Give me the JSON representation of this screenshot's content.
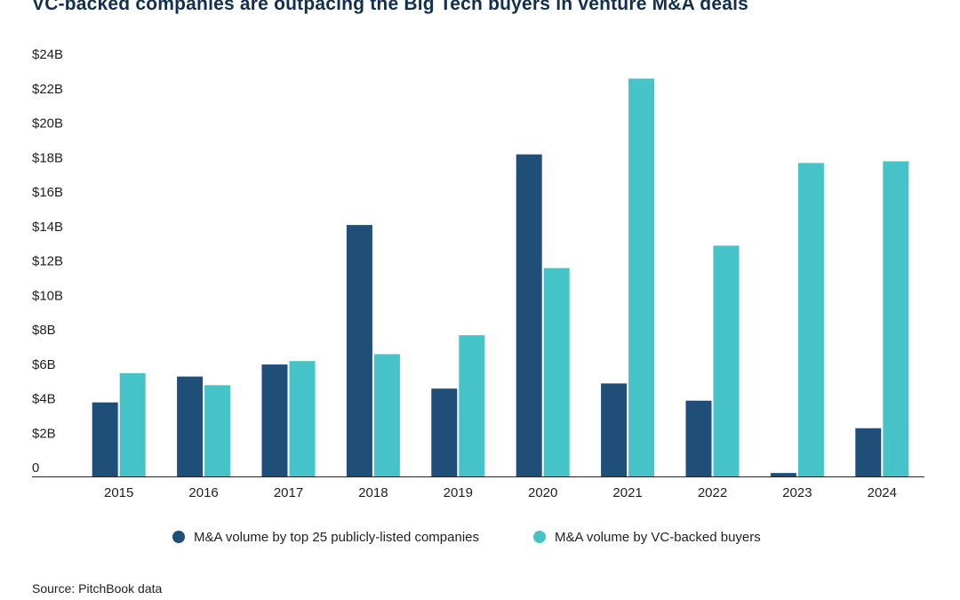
{
  "chart_data": {
    "type": "bar",
    "title": "VC-backed companies are outpacing the Big Tech buyers in venture M&A deals",
    "xlabel": "",
    "ylabel": "",
    "ylim": [
      0,
      24
    ],
    "y_ticks": [
      {
        "value": 0,
        "label": "0"
      },
      {
        "value": 2,
        "label": "$2B"
      },
      {
        "value": 4,
        "label": "$4B"
      },
      {
        "value": 6,
        "label": "$6B"
      },
      {
        "value": 8,
        "label": "$8B"
      },
      {
        "value": 10,
        "label": "$10B"
      },
      {
        "value": 12,
        "label": "$12B"
      },
      {
        "value": 14,
        "label": "$14B"
      },
      {
        "value": 16,
        "label": "$16B"
      },
      {
        "value": 18,
        "label": "$18B"
      },
      {
        "value": 20,
        "label": "$20B"
      },
      {
        "value": 22,
        "label": "$22B"
      },
      {
        "value": 24,
        "label": "$24B"
      }
    ],
    "categories": [
      "2015",
      "2016",
      "2017",
      "2018",
      "2019",
      "2020",
      "2021",
      "2022",
      "2023",
      "2024"
    ],
    "series": [
      {
        "name": "M&A volume by top 25 publicly-listed companies",
        "color": "#1f4e79",
        "values": [
          4.3,
          5.8,
          6.5,
          14.6,
          5.1,
          18.7,
          5.4,
          4.4,
          0.2,
          2.8
        ]
      },
      {
        "name": "M&A volume by VC-backed buyers",
        "color": "#45c3c9",
        "values": [
          6.0,
          5.3,
          6.7,
          7.1,
          8.2,
          12.1,
          23.1,
          13.4,
          18.2,
          18.3
        ]
      }
    ],
    "legend_position": "bottom-center",
    "grid": false
  },
  "source_text": "Source: PitchBook data"
}
